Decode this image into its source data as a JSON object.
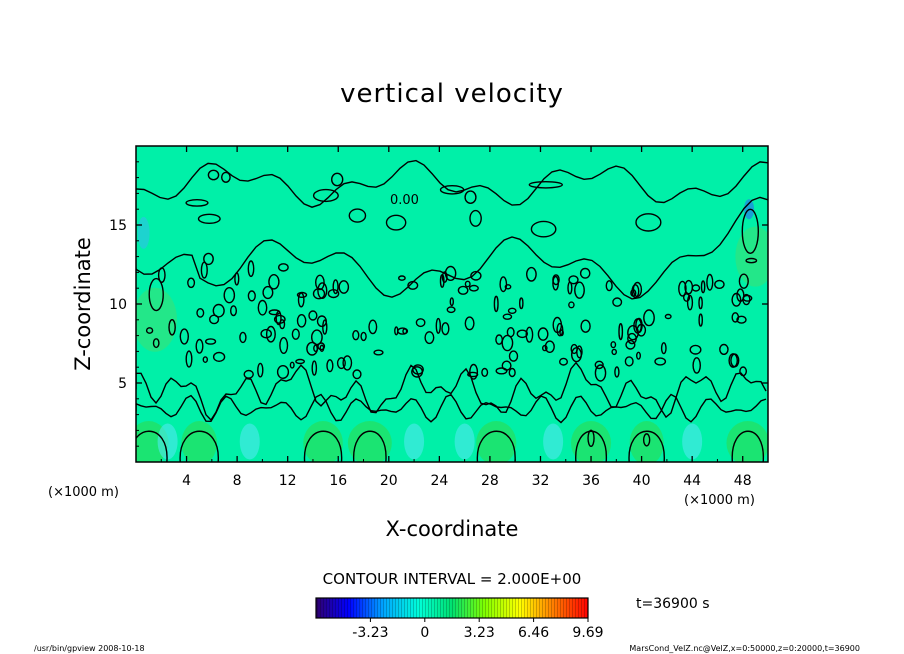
{
  "chart_data": {
    "type": "heatmap",
    "title": "vertical velocity",
    "xlabel": "X-coordinate",
    "ylabel": "Z-coordinate",
    "x_unit": "(×1000 m)",
    "y_unit": "(×1000 m)",
    "xlim": [
      0,
      50
    ],
    "ylim": [
      0,
      20
    ],
    "xticks": [
      4,
      8,
      12,
      16,
      20,
      24,
      28,
      32,
      36,
      40,
      44,
      48
    ],
    "yticks": [
      5,
      10,
      15
    ],
    "contour_label": "0.00",
    "contour_interval": "CONTOUR INTERVAL = 2.000E+00",
    "time_label": "t=36900  s",
    "colorbar": {
      "min": -6.46,
      "max": 9.69,
      "tick_labels": [
        "-3.23",
        "0",
        "3.23",
        "6.46",
        "9.69"
      ],
      "tick_values": [
        -3.23,
        0,
        3.23,
        6.46,
        9.69
      ]
    },
    "footer_left": "/usr/bin/gpview  2008-10-18",
    "footer_right": "MarsCond_VelZ.nc@VelZ,x=0:50000,z=0:20000,t=36900",
    "colors": {
      "background_field": "#00f0a8",
      "contour": "#000000"
    }
  }
}
